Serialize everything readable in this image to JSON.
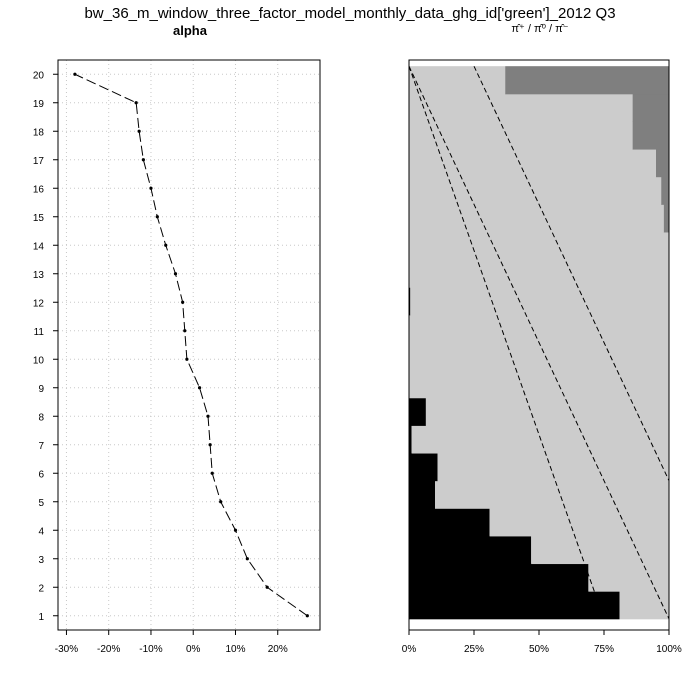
{
  "header": {
    "title": "bw_36_m_window_three_factor_model_monthly_data_ghg_id['green']_2012 Q3",
    "left_title": "alpha",
    "right_title": "π̂⁺ / π̂⁰ / π̂⁻"
  },
  "chart_data": [
    {
      "type": "line",
      "title": "alpha",
      "grid": true,
      "x_ticks": [
        "-30%",
        "-20%",
        "-10%",
        "0%",
        "10%",
        "20%"
      ],
      "y_ticks": [
        "1",
        "2",
        "3",
        "4",
        "5",
        "6",
        "7",
        "8",
        "9",
        "10",
        "11",
        "12",
        "13",
        "14",
        "15",
        "16",
        "17",
        "18",
        "19",
        "20"
      ],
      "xlim": [
        -0.32,
        0.3
      ],
      "ylim": [
        0.5,
        20.5
      ],
      "points": [
        {
          "y": 1,
          "x": 0.27
        },
        {
          "y": 2,
          "x": 0.175
        },
        {
          "y": 3,
          "x": 0.128
        },
        {
          "y": 4,
          "x": 0.1
        },
        {
          "y": 5,
          "x": 0.065
        },
        {
          "y": 6,
          "x": 0.045
        },
        {
          "y": 7,
          "x": 0.04
        },
        {
          "y": 8,
          "x": 0.035
        },
        {
          "y": 9,
          "x": 0.015
        },
        {
          "y": 10,
          "x": -0.015
        },
        {
          "y": 11,
          "x": -0.02
        },
        {
          "y": 12,
          "x": -0.025
        },
        {
          "y": 13,
          "x": -0.042
        },
        {
          "y": 14,
          "x": -0.065
        },
        {
          "y": 15,
          "x": -0.085
        },
        {
          "y": 16,
          "x": -0.1
        },
        {
          "y": 17,
          "x": -0.118
        },
        {
          "y": 18,
          "x": -0.128
        },
        {
          "y": 19,
          "x": -0.135
        },
        {
          "y": 20,
          "x": -0.28
        }
      ]
    },
    {
      "type": "bar",
      "title": "π̂⁺ / π̂⁰ / π̂⁻",
      "orientation": "horizontal-stacked",
      "x_ticks": [
        "0%",
        "25%",
        "50%",
        "75%",
        "100%"
      ],
      "xlim": [
        0,
        1
      ],
      "colors": {
        "pi_minus": "#000000",
        "pi_zero": "#cccccc",
        "pi_plus": "#7f7f7f"
      },
      "rows": [
        {
          "y": 1,
          "pi_minus": 0.81,
          "pi_plus": 0.0
        },
        {
          "y": 2,
          "pi_minus": 0.69,
          "pi_plus": 0.0
        },
        {
          "y": 3,
          "pi_minus": 0.47,
          "pi_plus": 0.0
        },
        {
          "y": 4,
          "pi_minus": 0.31,
          "pi_plus": 0.0
        },
        {
          "y": 5,
          "pi_minus": 0.1,
          "pi_plus": 0.0
        },
        {
          "y": 6,
          "pi_minus": 0.11,
          "pi_plus": 0.0
        },
        {
          "y": 7,
          "pi_minus": 0.01,
          "pi_plus": 0.0
        },
        {
          "y": 8,
          "pi_minus": 0.065,
          "pi_plus": 0.0
        },
        {
          "y": 9,
          "pi_minus": 0.0,
          "pi_plus": 0.0
        },
        {
          "y": 10,
          "pi_minus": 0.0,
          "pi_plus": 0.0
        },
        {
          "y": 11,
          "pi_minus": 0.0,
          "pi_plus": 0.0
        },
        {
          "y": 12,
          "pi_minus": 0.005,
          "pi_plus": 0.0
        },
        {
          "y": 13,
          "pi_minus": 0.0,
          "pi_plus": 0.0
        },
        {
          "y": 14,
          "pi_minus": 0.0,
          "pi_plus": 0.0
        },
        {
          "y": 15,
          "pi_minus": 0.0,
          "pi_plus": 0.02
        },
        {
          "y": 16,
          "pi_minus": 0.0,
          "pi_plus": 0.03
        },
        {
          "y": 17,
          "pi_minus": 0.0,
          "pi_plus": 0.05
        },
        {
          "y": 18,
          "pi_minus": 0.0,
          "pi_plus": 0.14
        },
        {
          "y": 19,
          "pi_minus": 0.0,
          "pi_plus": 0.14
        },
        {
          "y": 20,
          "pi_minus": 0.0,
          "pi_plus": 0.63
        }
      ],
      "dashed_lines": [
        {
          "x_at_top": 0.0,
          "x_at_bottom": 1.0
        },
        {
          "x_at_top": 0.25,
          "x_at_bottom": 1.25
        },
        {
          "x_at_top": 0.0,
          "x_at_bottom": 0.75
        }
      ]
    }
  ]
}
